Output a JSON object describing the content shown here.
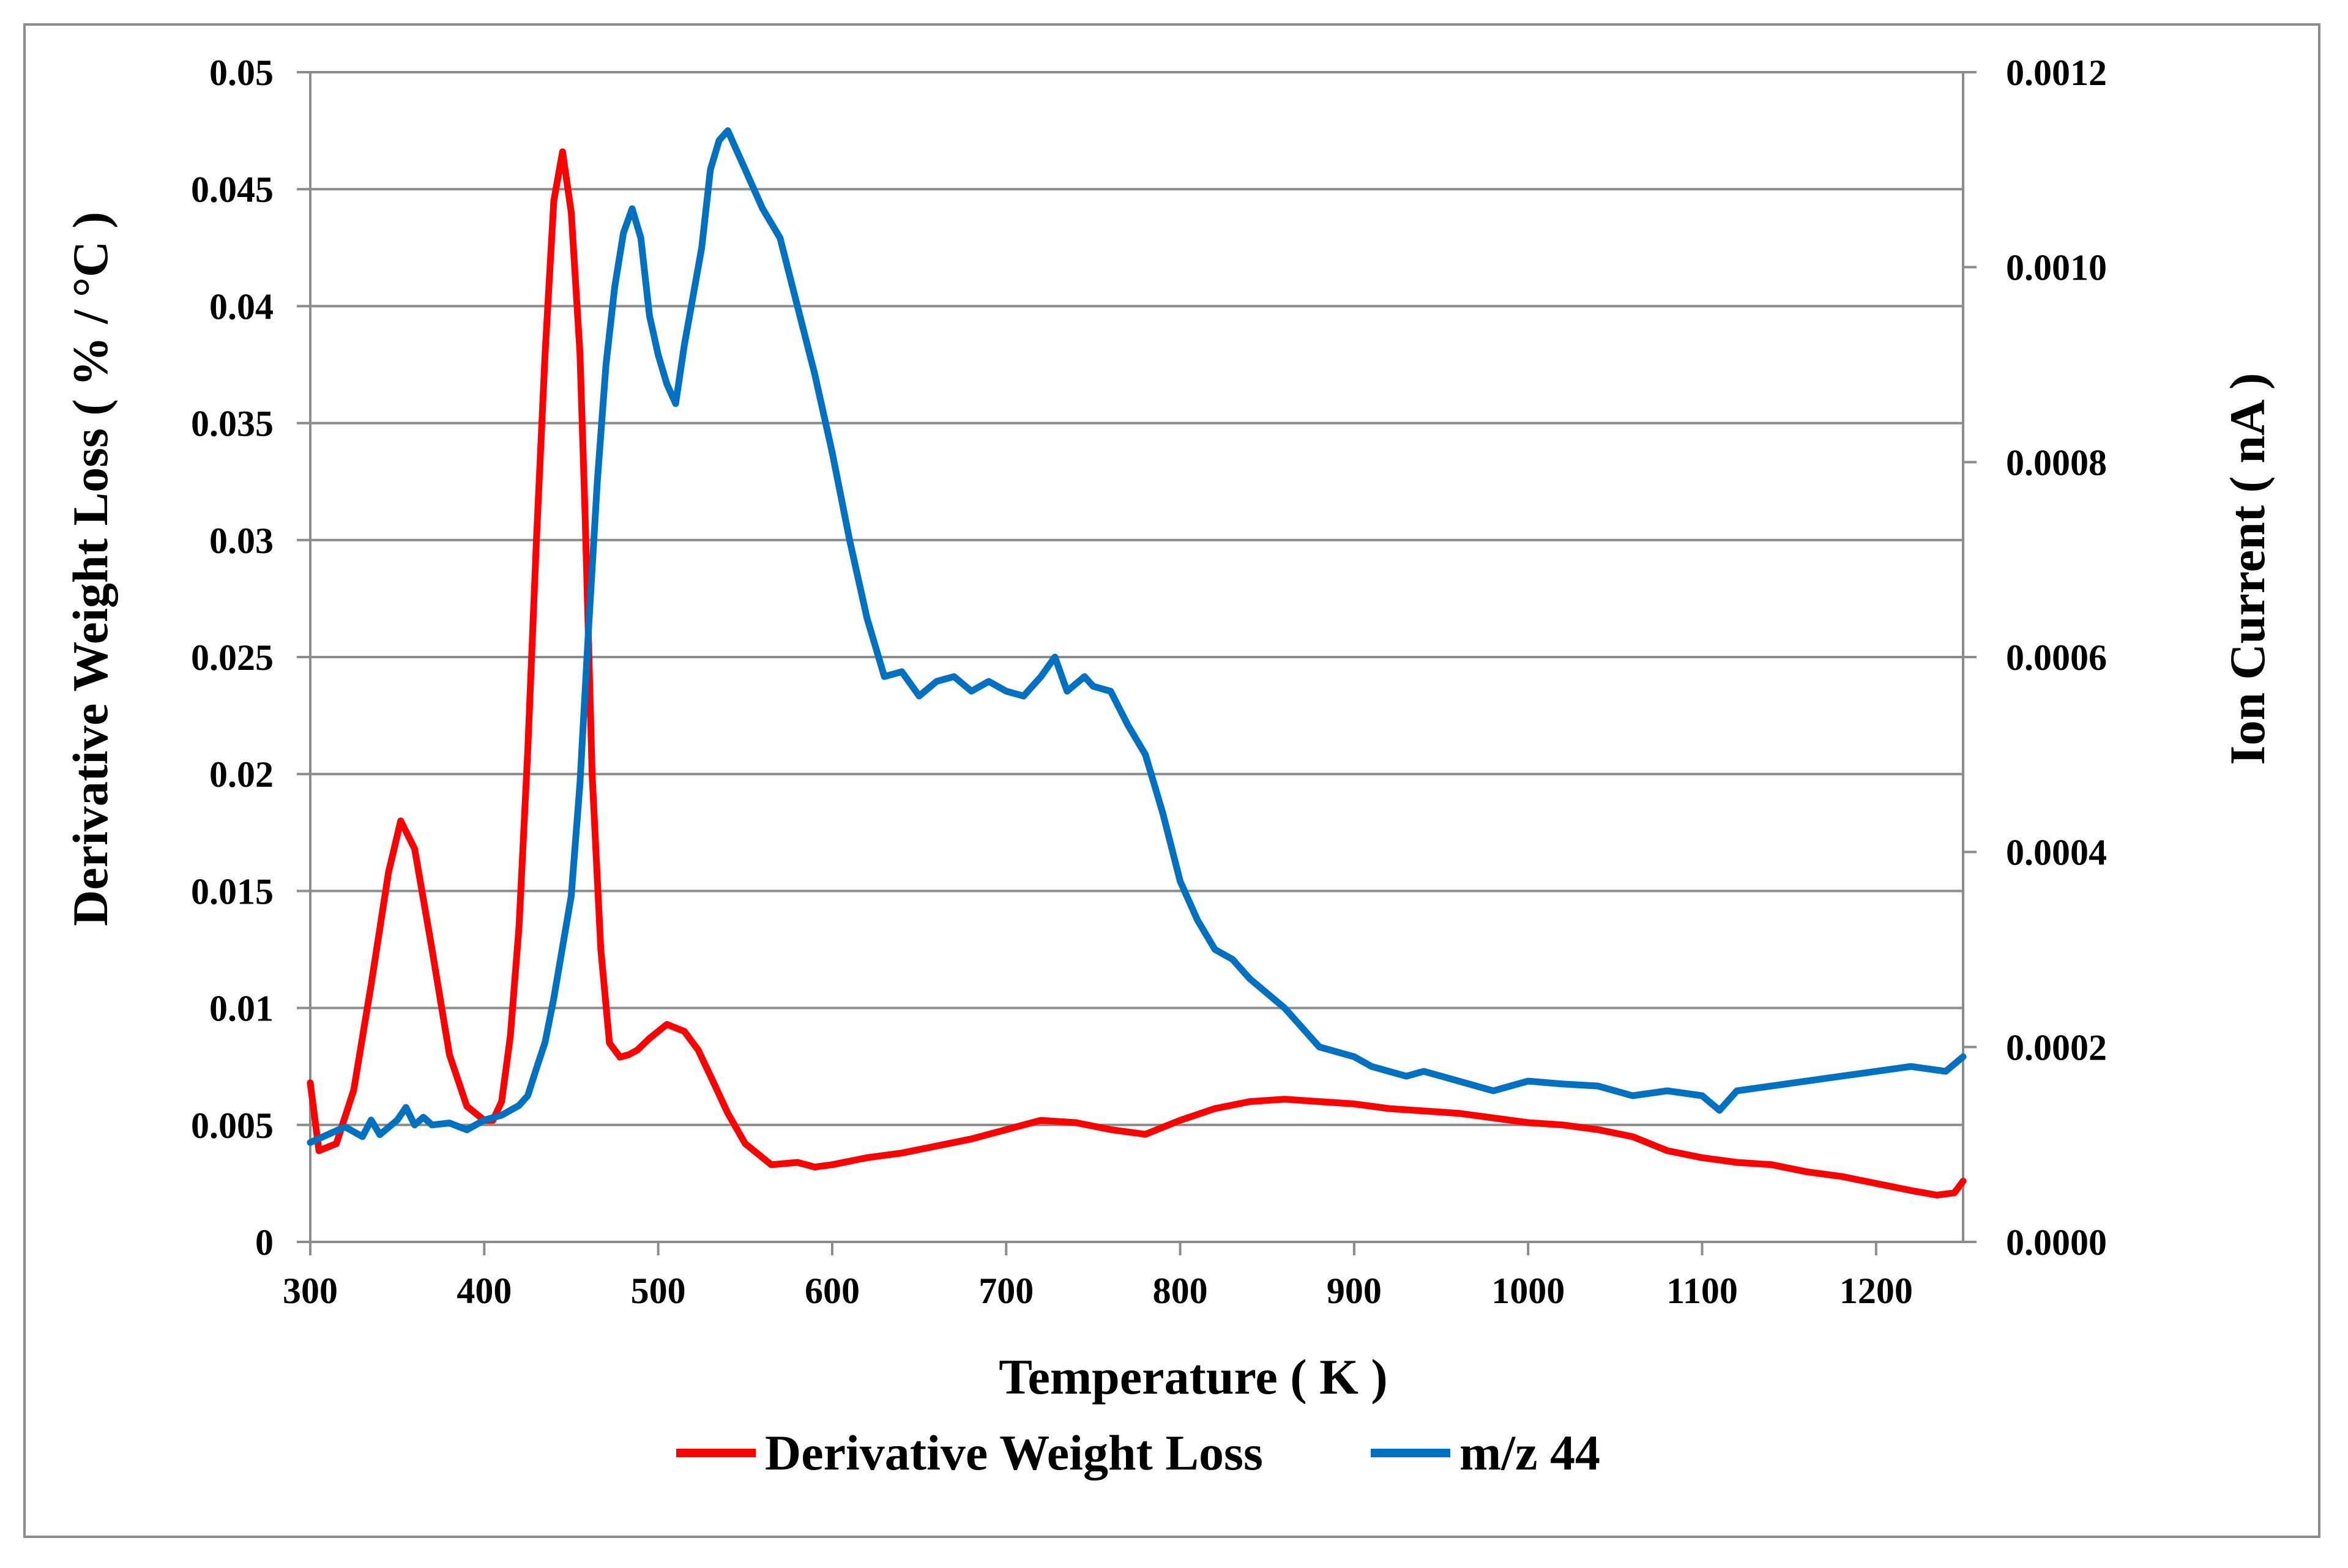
{
  "chart_data": {
    "type": "line",
    "title": "",
    "xlabel": "Temperature ( K )",
    "ylabel": "Derivative Weight Loss ( % / °C )",
    "y2label": "Ion Current ( nA )",
    "xlim": [
      300,
      1250
    ],
    "ylim": [
      0,
      0.05
    ],
    "y2lim": [
      0,
      0.0012
    ],
    "x_ticks": [
      "300",
      "400",
      "500",
      "600",
      "700",
      "800",
      "900",
      "1000",
      "1100",
      "1200"
    ],
    "x_tick_values": [
      300,
      400,
      500,
      600,
      700,
      800,
      900,
      1000,
      1100,
      1200
    ],
    "y_ticks": [
      "0",
      "0.005",
      "0.01",
      "0.015",
      "0.02",
      "0.025",
      "0.03",
      "0.035",
      "0.04",
      "0.045",
      "0.05"
    ],
    "y_tick_values": [
      0,
      0.005,
      0.01,
      0.015,
      0.02,
      0.025,
      0.03,
      0.035,
      0.04,
      0.045,
      0.05
    ],
    "y2_ticks": [
      "0.0000",
      "0.0002",
      "0.0004",
      "0.0006",
      "0.0008",
      "0.0010",
      "0.0012"
    ],
    "y2_tick_values": [
      0,
      0.0002,
      0.0004,
      0.0006,
      0.0008,
      0.001,
      0.0012
    ],
    "grid": true,
    "legend_position": "bottom",
    "series": [
      {
        "name": "Derivative Weight Loss",
        "axis": "left",
        "color": "#ff0000",
        "x": [
          300,
          305,
          315,
          325,
          335,
          345,
          352,
          360,
          370,
          380,
          390,
          400,
          405,
          410,
          415,
          420,
          425,
          430,
          435,
          440,
          445,
          450,
          455,
          458,
          462,
          467,
          472,
          478,
          483,
          488,
          495,
          505,
          515,
          523,
          530,
          540,
          550,
          565,
          580,
          590,
          600,
          620,
          640,
          660,
          680,
          700,
          720,
          740,
          760,
          780,
          800,
          820,
          840,
          860,
          880,
          900,
          920,
          940,
          960,
          980,
          1000,
          1020,
          1040,
          1060,
          1080,
          1100,
          1120,
          1140,
          1160,
          1180,
          1200,
          1220,
          1235,
          1245,
          1250
        ],
        "values": [
          0.0068,
          0.0039,
          0.0042,
          0.0065,
          0.011,
          0.0158,
          0.018,
          0.0168,
          0.0125,
          0.008,
          0.0058,
          0.0052,
          0.0052,
          0.006,
          0.0088,
          0.0135,
          0.021,
          0.03,
          0.038,
          0.0445,
          0.0466,
          0.044,
          0.038,
          0.031,
          0.02,
          0.0125,
          0.0085,
          0.0079,
          0.008,
          0.0082,
          0.0087,
          0.0093,
          0.009,
          0.0082,
          0.0071,
          0.0055,
          0.0042,
          0.0033,
          0.0034,
          0.0032,
          0.0033,
          0.0036,
          0.0038,
          0.0041,
          0.0044,
          0.0048,
          0.0052,
          0.0051,
          0.0048,
          0.0046,
          0.0052,
          0.0057,
          0.006,
          0.0061,
          0.006,
          0.0059,
          0.0057,
          0.0056,
          0.0055,
          0.0053,
          0.0051,
          0.005,
          0.0048,
          0.0045,
          0.0039,
          0.0036,
          0.0034,
          0.0033,
          0.003,
          0.0028,
          0.0025,
          0.0022,
          0.002,
          0.0021,
          0.0026
        ]
      },
      {
        "name": "m/z 44",
        "axis": "right",
        "color": "#0070c0",
        "x": [
          300,
          310,
          320,
          330,
          335,
          340,
          350,
          355,
          360,
          365,
          370,
          380,
          390,
          400,
          410,
          420,
          425,
          430,
          435,
          440,
          450,
          455,
          460,
          465,
          470,
          475,
          480,
          485,
          490,
          495,
          500,
          505,
          510,
          515,
          520,
          525,
          530,
          535,
          540,
          545,
          550,
          560,
          570,
          580,
          590,
          600,
          610,
          620,
          630,
          640,
          650,
          660,
          670,
          680,
          690,
          700,
          710,
          720,
          728,
          735,
          745,
          750,
          760,
          770,
          780,
          790,
          800,
          810,
          820,
          830,
          840,
          850,
          860,
          870,
          880,
          890,
          900,
          910,
          920,
          930,
          940,
          950,
          960,
          980,
          1000,
          1020,
          1040,
          1060,
          1080,
          1100,
          1110,
          1120,
          1140,
          1160,
          1180,
          1200,
          1220,
          1240,
          1250
        ],
        "values": [
          0.000102,
          0.00011,
          0.000118,
          0.000108,
          0.000125,
          0.00011,
          0.000125,
          0.000138,
          0.00012,
          0.000128,
          0.00012,
          0.000122,
          0.000115,
          0.000125,
          0.00013,
          0.00014,
          0.00015,
          0.000178,
          0.000205,
          0.00025,
          0.000355,
          0.00047,
          0.00063,
          0.00078,
          0.0009,
          0.00098,
          0.001035,
          0.00106,
          0.00103,
          0.00095,
          0.00091,
          0.00088,
          0.00086,
          0.00092,
          0.00097,
          0.00102,
          0.0011,
          0.00113,
          0.00114,
          0.00112,
          0.0011,
          0.00106,
          0.00103,
          0.00096,
          0.00089,
          0.00081,
          0.00072,
          0.00064,
          0.00058,
          0.000585,
          0.00056,
          0.000575,
          0.00058,
          0.000565,
          0.000575,
          0.000565,
          0.00056,
          0.00058,
          0.0006,
          0.000565,
          0.00058,
          0.00057,
          0.000565,
          0.00053,
          0.0005,
          0.00044,
          0.00037,
          0.00033,
          0.0003,
          0.00029,
          0.00027,
          0.000255,
          0.00024,
          0.00022,
          0.0002,
          0.000195,
          0.00019,
          0.00018,
          0.000175,
          0.00017,
          0.000175,
          0.00017,
          0.000165,
          0.000155,
          0.000165,
          0.000162,
          0.00016,
          0.00015,
          0.000155,
          0.00015,
          0.000135,
          0.000155,
          0.00016,
          0.000165,
          0.00017,
          0.000175,
          0.00018,
          0.000175,
          0.00019
        ]
      }
    ]
  }
}
